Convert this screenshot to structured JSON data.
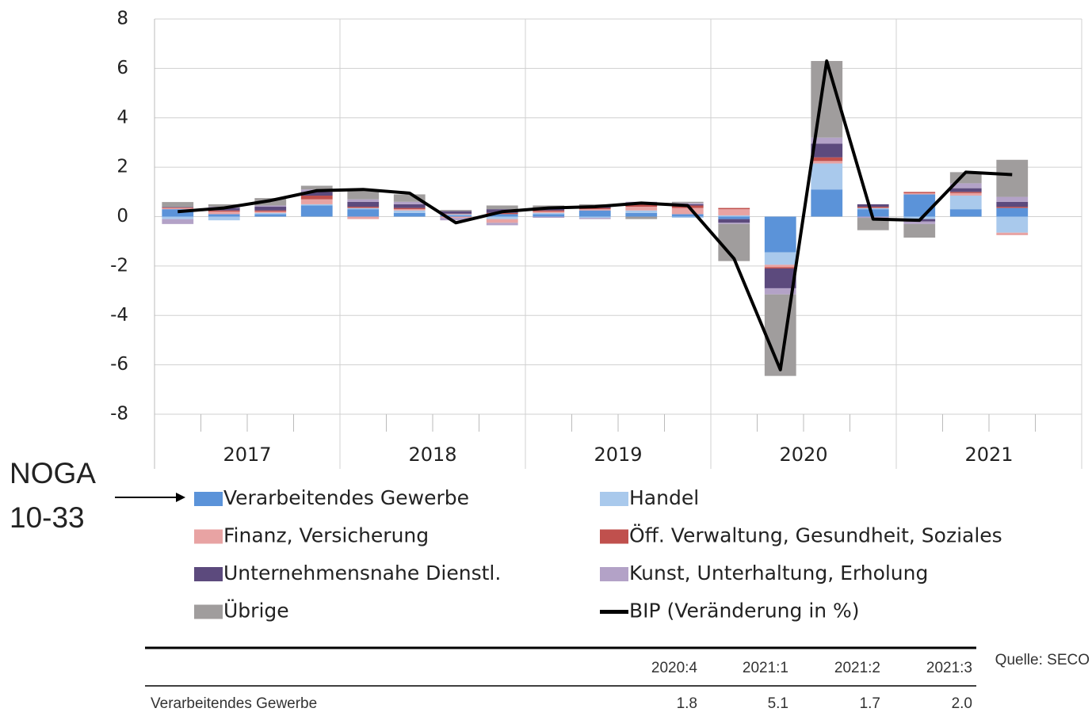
{
  "chart_data": {
    "type": "bar",
    "stacked": true,
    "categories": [
      null,
      null,
      null,
      null,
      null,
      null,
      null,
      null,
      null,
      null,
      null,
      null,
      null,
      null,
      null,
      null,
      null,
      null,
      null,
      null
    ],
    "year_labels": [
      "2017",
      "2018",
      "2019",
      "2020",
      "2021"
    ],
    "ylim": [
      -8,
      8
    ],
    "yticks": [
      -8,
      -6,
      -4,
      -2,
      0,
      2,
      4,
      6,
      8
    ],
    "grid": true,
    "series": [
      {
        "name": "Verarbeitendes Gewerbe",
        "color": "#5b93d9",
        "values": [
          0.3,
          0.1,
          0.1,
          0.45,
          0.3,
          0.15,
          0.05,
          0.1,
          0.1,
          0.25,
          0.15,
          0.1,
          -0.1,
          -1.45,
          1.1,
          0.3,
          0.9,
          0.3,
          0.35,
          null
        ]
      },
      {
        "name": "Handel",
        "color": "#a9c9ec",
        "values": [
          -0.1,
          -0.15,
          0.05,
          0.05,
          0.05,
          0.1,
          0.05,
          -0.1,
          0.05,
          -0.05,
          0.1,
          -0.05,
          0.05,
          -0.5,
          1.05,
          0.05,
          -0.1,
          0.55,
          -0.65,
          null
        ]
      },
      {
        "name": "Finanz, Versicherung",
        "color": "#e8a3a3",
        "values": [
          0.05,
          0.1,
          0.05,
          0.2,
          -0.1,
          0.05,
          -0.05,
          -0.15,
          0.05,
          0.05,
          0.15,
          0.25,
          0.25,
          -0.1,
          0.1,
          0,
          0.05,
          0.1,
          -0.1,
          null
        ]
      },
      {
        "name": "Öff. Verwaltung, Gesundheit, Soziales",
        "color": "#c0504d",
        "values": [
          0.02,
          0.05,
          0.05,
          0.15,
          0.05,
          0.05,
          0.02,
          0.05,
          0.05,
          0.05,
          0.1,
          0.1,
          0.05,
          -0.05,
          0.15,
          0.05,
          0.05,
          0.05,
          0.05,
          null
        ]
      },
      {
        "name": "Unternehmensnahe Dienstl.",
        "color": "#5c4a7d",
        "values": [
          0.02,
          0.1,
          0.15,
          0.15,
          0.2,
          0.15,
          0.1,
          0.15,
          0.1,
          0.05,
          0.05,
          0.05,
          -0.15,
          -0.8,
          0.55,
          0.1,
          -0.1,
          0.15,
          0.2,
          null
        ]
      },
      {
        "name": "Kunst, Unterhaltung, Erholung",
        "color": "#b3a2c7",
        "values": [
          -0.2,
          0.05,
          0.05,
          0.1,
          0.1,
          0.1,
          -0.1,
          -0.1,
          -0.05,
          -0.05,
          0.05,
          0.05,
          -0.05,
          -0.25,
          0.25,
          -0.05,
          -0.1,
          0.2,
          0.2,
          null
        ]
      },
      {
        "name": "Übrige",
        "color": "#a09d9d",
        "values": [
          0.2,
          0.1,
          0.3,
          0.15,
          0.35,
          0.3,
          0.05,
          0.15,
          0.1,
          0.1,
          -0.1,
          0.05,
          -1.5,
          -3.3,
          3.1,
          -0.5,
          -0.55,
          0.45,
          1.5,
          null
        ]
      },
      {
        "name": "BIP (Veränderung in %)",
        "color": "#000000",
        "type": "line",
        "values": [
          0.2,
          0.35,
          0.65,
          1.05,
          1.1,
          0.95,
          -0.25,
          0.2,
          0.35,
          0.4,
          0.55,
          0.45,
          -1.7,
          -6.2,
          6.3,
          -0.1,
          -0.15,
          1.8,
          1.7,
          null
        ]
      }
    ]
  },
  "annotation": {
    "lines": [
      "NOGA",
      "10-33"
    ]
  },
  "source": "Quelle: SECO",
  "table": {
    "columns": [
      "2020:4",
      "2021:1",
      "2021:2",
      "2021:3"
    ],
    "rows": [
      {
        "label": "Verarbeitendes Gewerbe",
        "values": [
          "1.8",
          "5.1",
          "1.7",
          "2.0"
        ]
      }
    ]
  }
}
